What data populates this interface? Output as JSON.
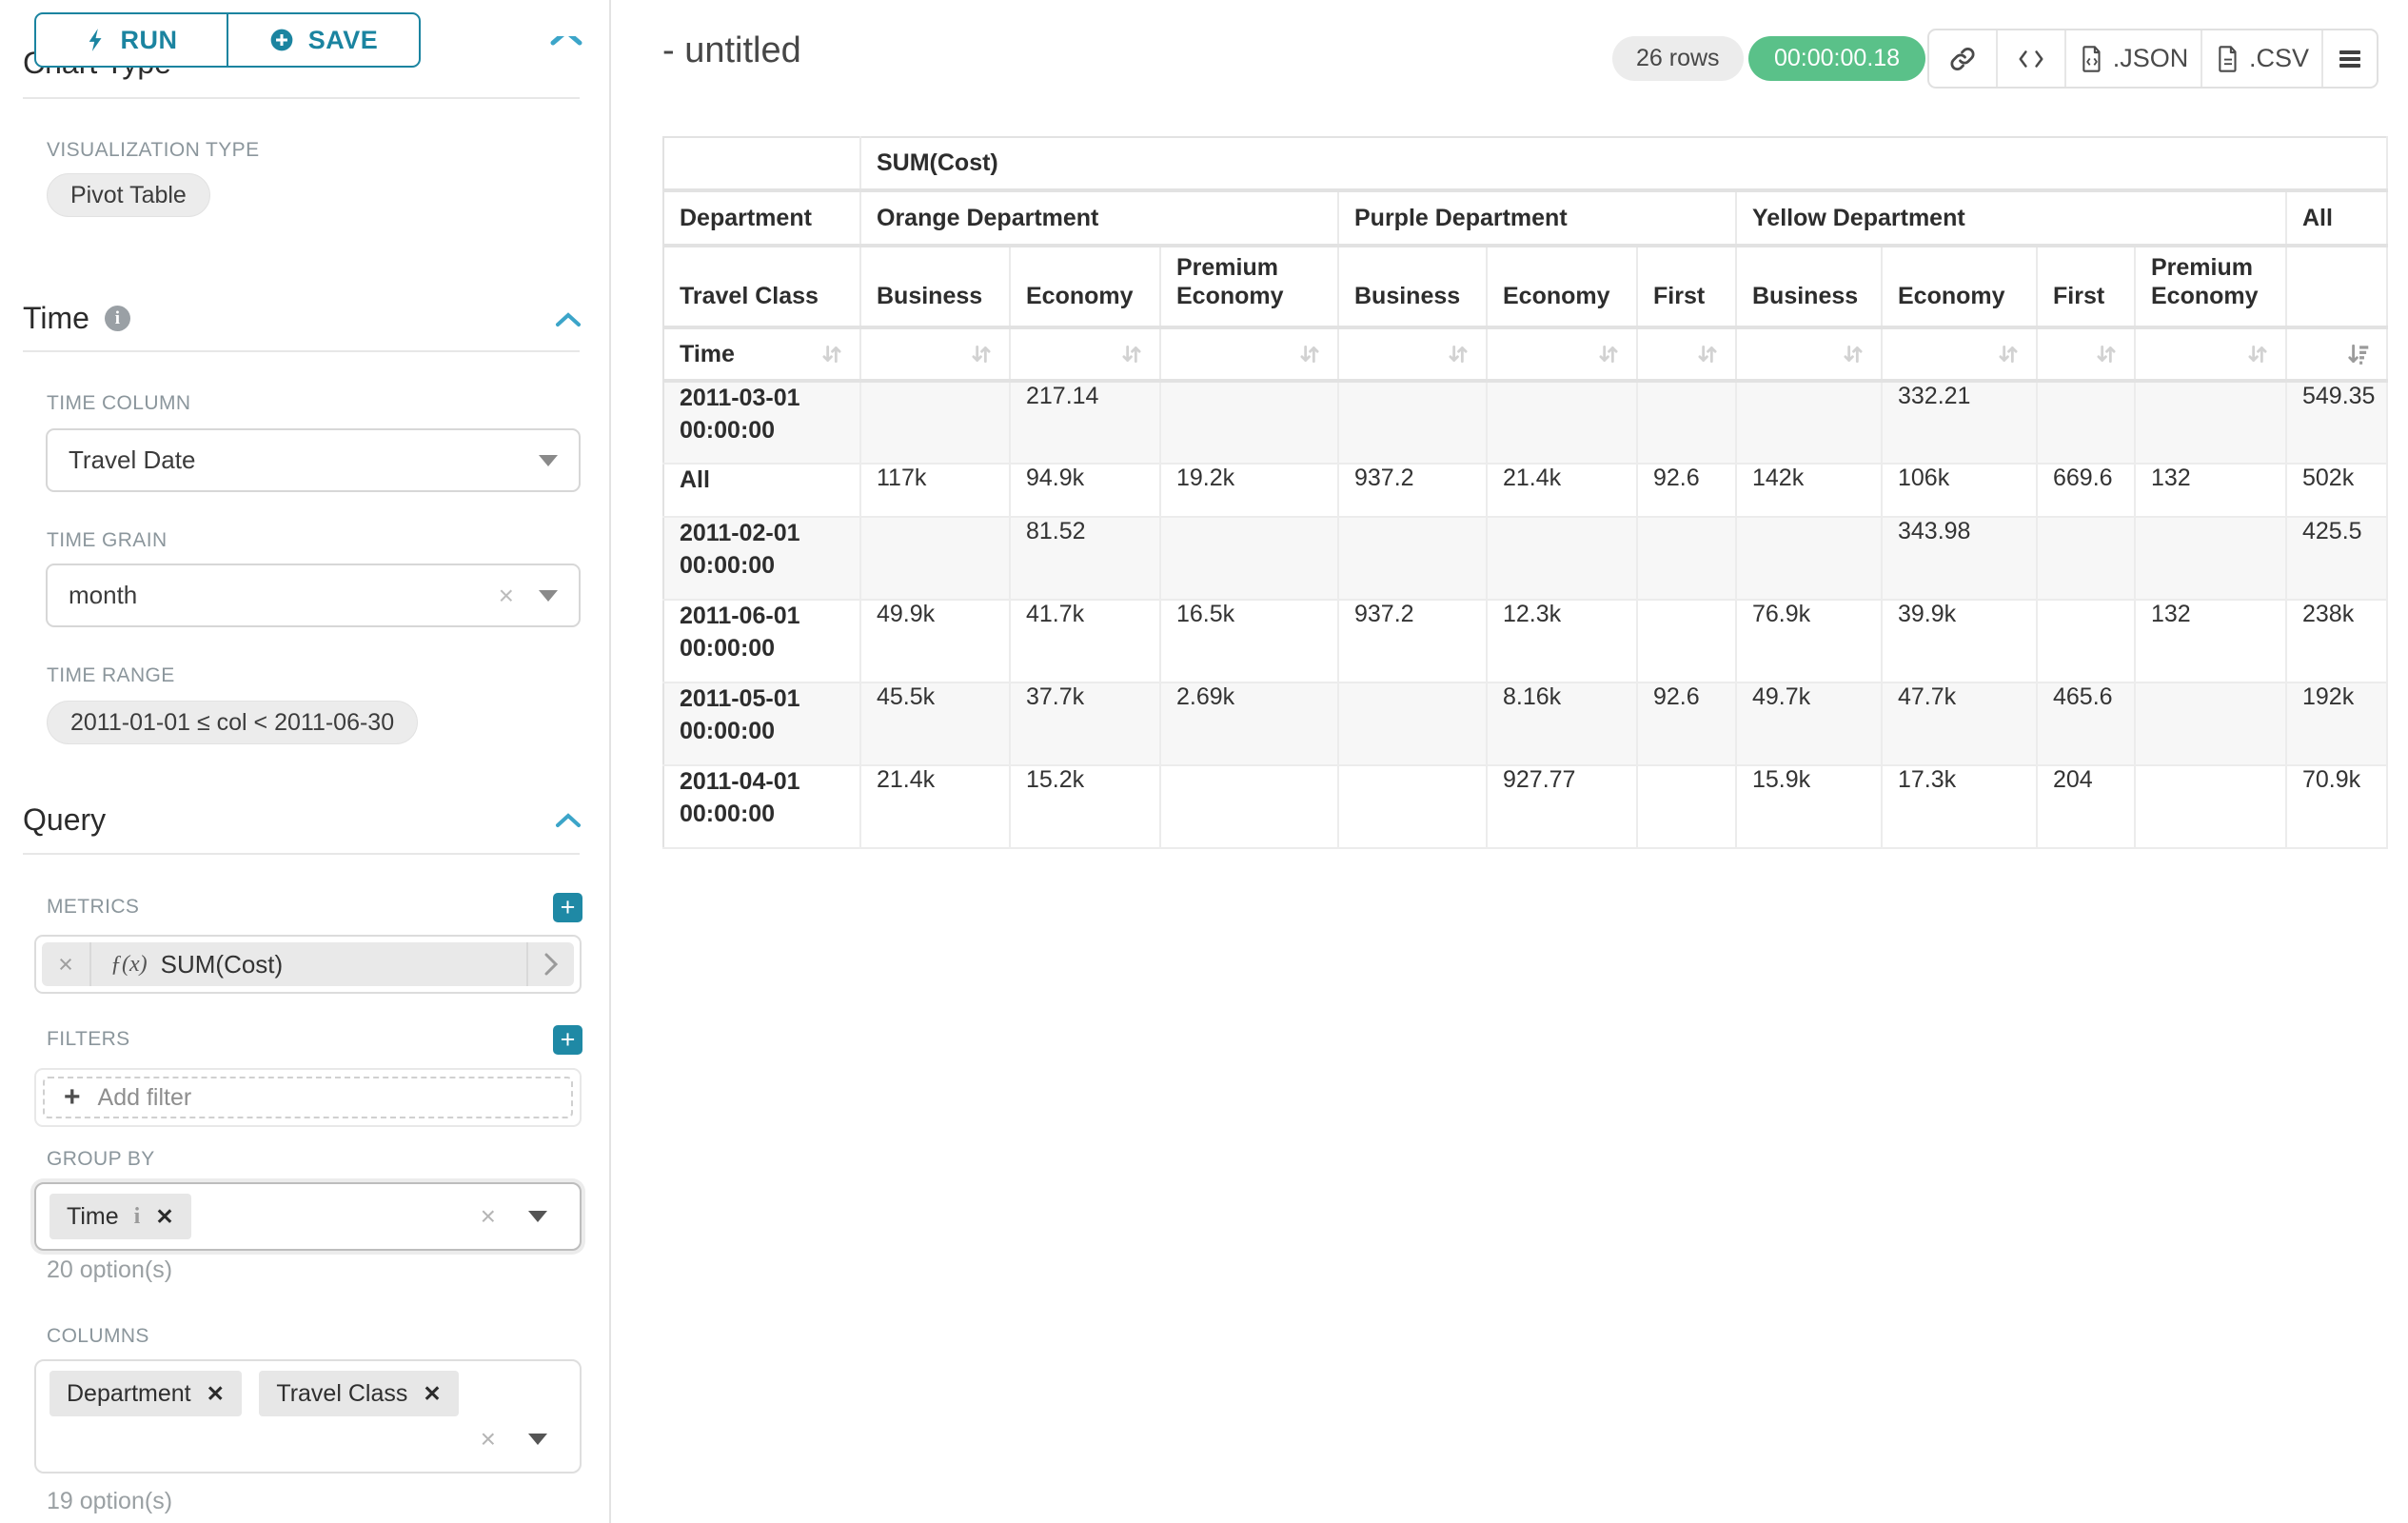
{
  "toolbar": {
    "run_label": "RUN",
    "save_label": "SAVE"
  },
  "sidebar": {
    "chart_type_heading": "Chart Type",
    "viz_type_label": "VISUALIZATION TYPE",
    "viz_type_value": "Pivot Table",
    "time": {
      "heading": "Time",
      "time_column_label": "TIME COLUMN",
      "time_column_value": "Travel Date",
      "time_grain_label": "TIME GRAIN",
      "time_grain_value": "month",
      "time_range_label": "TIME RANGE",
      "time_range_value": "2011-01-01 ≤ col < 2011-06-30"
    },
    "query": {
      "heading": "Query",
      "metrics_label": "METRICS",
      "metric_fx": "ƒ(x)",
      "metric_name": "SUM(Cost)",
      "filters_label": "FILTERS",
      "add_filter_placeholder": "Add filter",
      "group_by_label": "GROUP BY",
      "group_by_tags": [
        "Time"
      ],
      "group_by_options_hint": "20 option(s)",
      "columns_label": "COLUMNS",
      "columns_tags": [
        "Department",
        "Travel Class"
      ],
      "columns_options_hint": "19 option(s)"
    }
  },
  "header": {
    "title": "- untitled",
    "rows_badge": "26 rows",
    "timer": "00:00:00.18",
    "export_json_label": ".JSON",
    "export_csv_label": ".CSV"
  },
  "icons": {
    "run": "bolt-icon",
    "save": "plus-circle-icon",
    "collapse": "chevron-up-icon",
    "info": "info-circle-icon",
    "metric": "fx-icon",
    "share": "link-icon",
    "embed": "code-icon",
    "json": "file-code-icon",
    "csv": "file-lines-icon",
    "menu": "hamburger-icon",
    "sort": "sort-arrows-icon",
    "sort_active": "sort-desc-icon"
  },
  "colors": {
    "accent_teal": "#1b84a0",
    "success_green": "#5ac189"
  },
  "chart_data": {
    "type": "table",
    "metric_header": "SUM(Cost)",
    "row_header_labels": {
      "department": "Department",
      "travel_class": "Travel Class",
      "time": "Time"
    },
    "column_groups": [
      {
        "label": "Orange Department",
        "classes": [
          "Business",
          "Economy",
          "Premium Economy"
        ]
      },
      {
        "label": "Purple Department",
        "classes": [
          "Business",
          "Economy",
          "First"
        ]
      },
      {
        "label": "Yellow Department",
        "classes": [
          "Business",
          "Economy",
          "First",
          "Premium Economy"
        ]
      },
      {
        "label": "All",
        "classes": [
          ""
        ]
      }
    ],
    "rows": [
      {
        "label": "2011-03-01 00:00:00",
        "values": [
          "",
          "217.14",
          "",
          "",
          "",
          "",
          "",
          "332.21",
          "",
          "",
          "549.35"
        ]
      },
      {
        "label": "All",
        "values": [
          "117k",
          "94.9k",
          "19.2k",
          "937.2",
          "21.4k",
          "92.6",
          "142k",
          "106k",
          "669.6",
          "132",
          "502k"
        ]
      },
      {
        "label": "2011-02-01 00:00:00",
        "values": [
          "",
          "81.52",
          "",
          "",
          "",
          "",
          "",
          "343.98",
          "",
          "",
          "425.5"
        ]
      },
      {
        "label": "2011-06-01 00:00:00",
        "values": [
          "49.9k",
          "41.7k",
          "16.5k",
          "937.2",
          "12.3k",
          "",
          "76.9k",
          "39.9k",
          "",
          "132",
          "238k"
        ]
      },
      {
        "label": "2011-05-01 00:00:00",
        "values": [
          "45.5k",
          "37.7k",
          "2.69k",
          "",
          "8.16k",
          "92.6",
          "49.7k",
          "47.7k",
          "465.6",
          "",
          "192k"
        ]
      },
      {
        "label": "2011-04-01 00:00:00",
        "values": [
          "21.4k",
          "15.2k",
          "",
          "",
          "927.77",
          "",
          "15.9k",
          "17.3k",
          "204",
          "",
          "70.9k"
        ]
      }
    ],
    "sort": {
      "active_column": "All",
      "direction": "desc"
    }
  }
}
